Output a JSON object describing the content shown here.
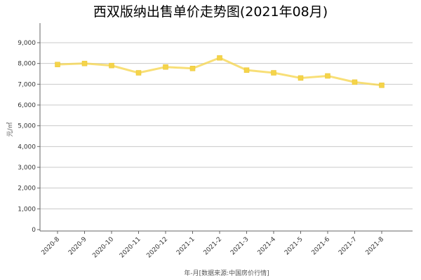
{
  "chart_data": {
    "type": "line",
    "title": "西双版纳出售单价走势图(2021年08月)",
    "xlabel": "年-月[数据来源:中国房价行情]",
    "ylabel": "元/㎡",
    "ylim": [
      0,
      10000
    ],
    "yticks": [
      0,
      1000,
      2000,
      3000,
      4000,
      5000,
      6000,
      7000,
      8000,
      9000
    ],
    "ytick_labels": [
      "0",
      "1,000",
      "2,000",
      "3,000",
      "4,000",
      "5,000",
      "6,000",
      "7,000",
      "8,000",
      "9,000"
    ],
    "categories": [
      "2020-8",
      "2020-9",
      "2020-10",
      "2020-11",
      "2020-12",
      "2021-1",
      "2021-2",
      "2021-3",
      "2021-4",
      "2021-5",
      "2021-6",
      "2021-7",
      "2021-8"
    ],
    "values": [
      7950,
      8000,
      7900,
      7550,
      7830,
      7760,
      8270,
      7680,
      7550,
      7300,
      7400,
      7100,
      6950
    ],
    "color": "#f5d44a",
    "grid": true
  }
}
